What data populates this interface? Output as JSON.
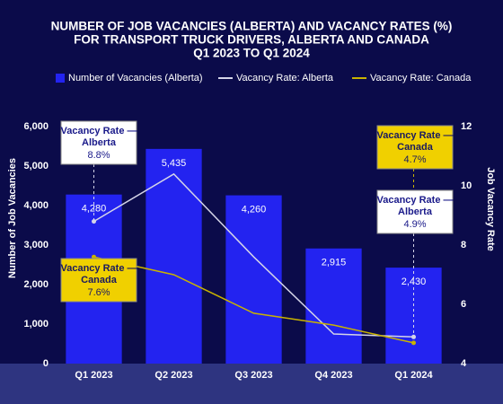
{
  "chart_data": {
    "type": "bar",
    "title": [
      "NUMBER OF JOB VACANCIES (ALBERTA) AND VACANCY RATES (%)",
      "FOR TRANSPORT TRUCK DRIVERS, ALBERTA AND CANADA",
      "Q1 2023 TO Q1 2024"
    ],
    "y_label": "Number of Job Vacancies",
    "y2_label": "Job Vacancy Rate",
    "categories": [
      "Q1 2023",
      "Q2 2023",
      "Q3 2023",
      "Q4 2023",
      "Q1 2024"
    ],
    "series": [
      {
        "name": "Number of Vacancies (Alberta)",
        "type": "bar",
        "color": "#2323f0",
        "values": [
          4280,
          5435,
          4260,
          2915,
          2430
        ],
        "value_labels": [
          "4,280",
          "5,435",
          "4,260",
          "2,915",
          "2,430"
        ]
      },
      {
        "name": "Vacancy Rate: Alberta",
        "type": "line",
        "axis": "y2",
        "color": "#d4d4e8",
        "values": [
          8.8,
          10.4,
          7.6,
          5.0,
          4.9
        ]
      },
      {
        "name": "Vacancy Rate: Canada",
        "type": "line",
        "axis": "y2",
        "color": "#c9b300",
        "values": [
          7.6,
          7.0,
          5.7,
          5.3,
          4.7
        ]
      }
    ],
    "ylim": [
      0,
      6000
    ],
    "yticks": [
      0,
      {
        "value": 1000,
        "label": "1,000"
      },
      {
        "value": 2000,
        "label": "2,000"
      },
      {
        "value": 3000,
        "label": "3,000"
      },
      {
        "value": 4000,
        "label": "4,000"
      },
      {
        "value": 5000,
        "label": "5,000"
      },
      {
        "value": 6000,
        "label": "6,000"
      }
    ],
    "y2lim": [
      4,
      12
    ],
    "y2ticks": [
      4,
      6,
      8,
      10,
      12
    ],
    "annotations": [
      {
        "series": 1,
        "point": 0,
        "title": "Vacancy Rate —",
        "subtitle": "Alberta",
        "value": "8.8%"
      },
      {
        "series": 2,
        "point": 0,
        "title": "Vacancy Rate —",
        "subtitle": "Canada",
        "value": "7.6%"
      },
      {
        "series": 2,
        "point": 4,
        "title": "Vacancy Rate —",
        "subtitle": "Canada",
        "value": "4.7%"
      },
      {
        "series": 1,
        "point": 4,
        "title": "Vacancy Rate —",
        "subtitle": "Alberta",
        "value": "4.9%"
      }
    ]
  }
}
